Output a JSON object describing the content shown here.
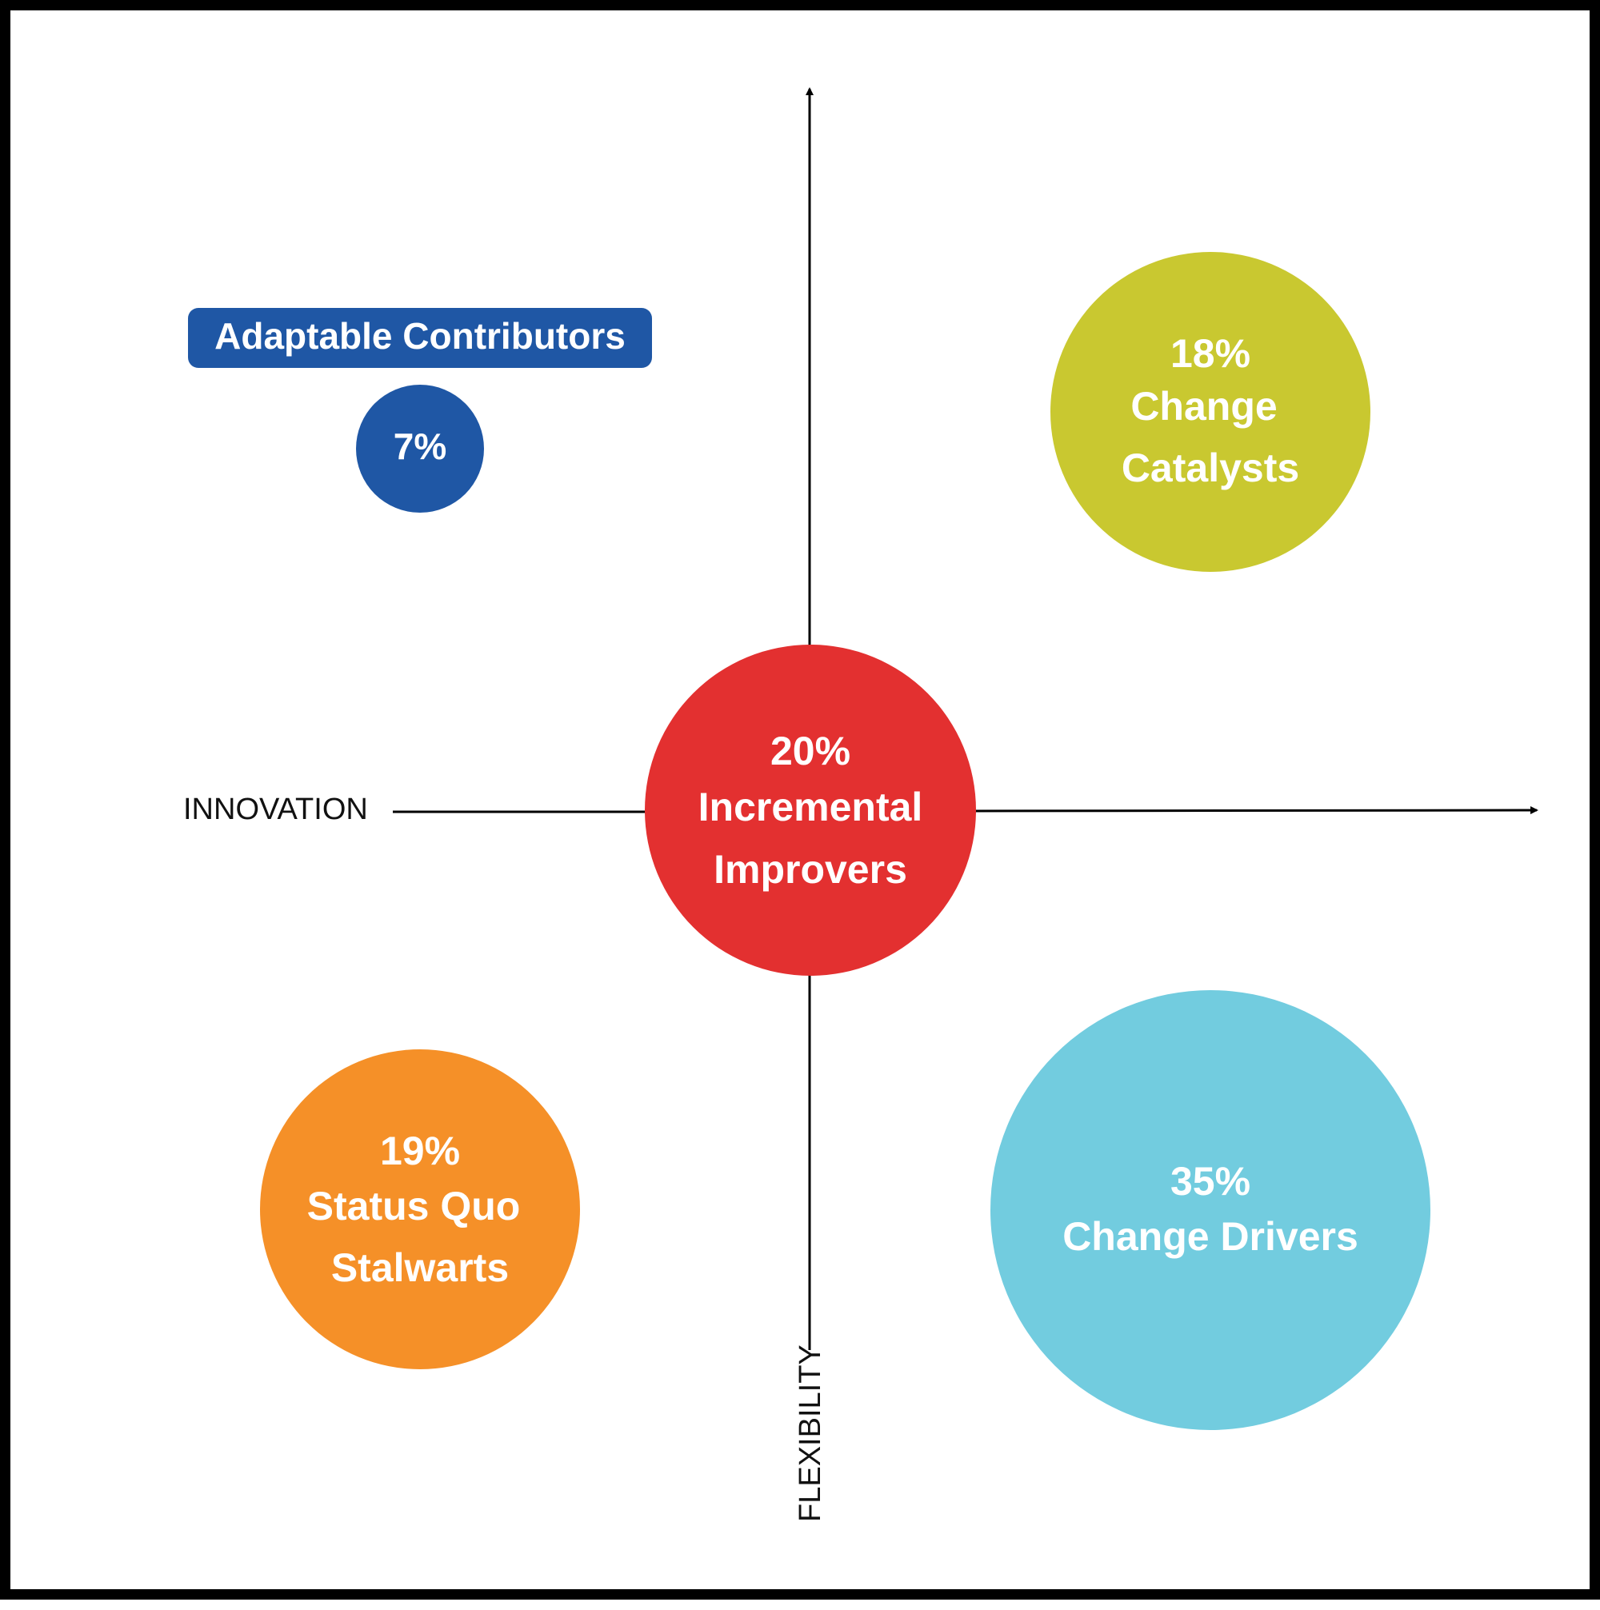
{
  "axes": {
    "horizontal_label": "INNOVATION",
    "vertical_label": "FLEXIBILITY"
  },
  "segments": {
    "adaptable_contributors": {
      "name": "Adaptable Contributors",
      "percent": "7%",
      "color": "#1f57a5"
    },
    "change_catalysts": {
      "percent": "18%",
      "name_line1": "Change",
      "name_line2": "Catalysts",
      "color": "#c9c830"
    },
    "incremental_improvers": {
      "percent": "20%",
      "name_line1": "Incremental",
      "name_line2": "Improvers",
      "color": "#e33030"
    },
    "status_quo_stalwarts": {
      "percent": "19%",
      "name_line1": "Status Quo",
      "name_line2": "Stalwarts",
      "color": "#f59028"
    },
    "change_drivers": {
      "percent": "35%",
      "name": "Change Drivers",
      "color": "#72ccdf"
    }
  }
}
